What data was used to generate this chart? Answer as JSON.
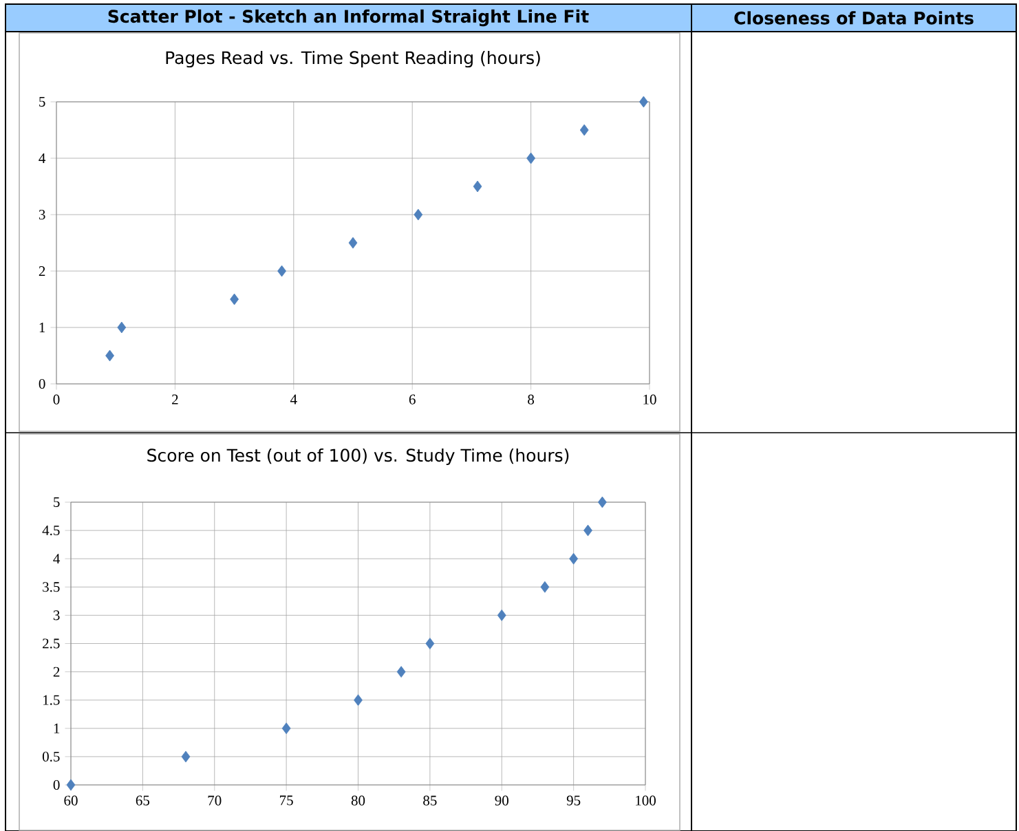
{
  "chart_data": [
    {
      "type": "scatter",
      "title": "Pages Read vs. Time Spent Reading (hours)",
      "annotations": [
        "Scatter Plot - Sketch an Informal Straight Line Fit",
        "Closeness of Data Points"
      ],
      "x": [
        0.9,
        1.1,
        3,
        3.8,
        5,
        6.1,
        7.1,
        8,
        8.9,
        9.9
      ],
      "values": [
        0.5,
        1,
        1.5,
        2,
        2.5,
        3,
        3.5,
        4,
        4.5,
        5
      ],
      "color": "#4f81bd",
      "marker": "diamond",
      "grid": true,
      "xlim": [
        0,
        10
      ],
      "ylim": [
        0,
        5
      ],
      "xticks": [
        0,
        2,
        4,
        6,
        8,
        10
      ],
      "yticks": [
        0,
        1,
        2,
        3,
        4,
        5
      ]
    },
    {
      "type": "scatter",
      "title": "Score on Test (out of 100) vs. Study Time (hours)",
      "x": [
        60,
        68,
        75,
        80,
        83,
        85,
        90,
        93,
        95,
        96,
        97
      ],
      "values": [
        0,
        0.5,
        1,
        1.5,
        2,
        2.5,
        3,
        3.5,
        4,
        4.5,
        5
      ],
      "color": "#4f81bd",
      "marker": "diamond",
      "grid": true,
      "xlim": [
        60,
        100
      ],
      "ylim": [
        0,
        5
      ],
      "xticks": [
        60,
        65,
        70,
        75,
        80,
        85,
        90,
        95,
        100
      ],
      "yticks": [
        0,
        0.5,
        1,
        1.5,
        2,
        2.5,
        3,
        3.5,
        4,
        4.5,
        5
      ]
    }
  ]
}
